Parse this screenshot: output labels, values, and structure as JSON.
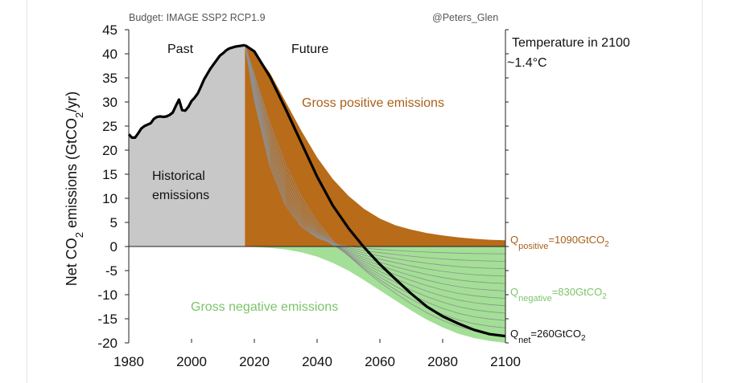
{
  "chart_data": {
    "type": "area",
    "budget_label": "Budget: IMAGE SSP2 RCP1.9",
    "credit": "@Peters_Glen",
    "ylabel": "Net CO₂ emissions (GtCO₂/yr)",
    "ylabel_parts": {
      "a": "Net CO",
      "sub1": "2",
      "b": " emissions (GtCO",
      "sub2": "2",
      "c": "/yr)"
    },
    "xlim": [
      1980,
      2100
    ],
    "ylim": [
      -20,
      45
    ],
    "x_ticks": [
      1980,
      2000,
      2020,
      2040,
      2060,
      2080,
      2100
    ],
    "y_ticks": [
      45,
      40,
      35,
      30,
      25,
      20,
      15,
      10,
      5,
      0,
      -5,
      -10,
      -15,
      -20
    ],
    "transition_year": 2017,
    "annotations": {
      "past": "Past",
      "future": "Future",
      "historical_line1": "Historical",
      "historical_line2": "emissions",
      "gross_positive": "Gross positive emissions",
      "gross_negative": "Gross negative emissions",
      "temp_title": "Temperature in 2100",
      "temp_value": "~1.4°C"
    },
    "budgets": {
      "positive": {
        "q": "Q",
        "sub": "positive",
        "value": "=1090GtCO",
        "unit_sub": "2"
      },
      "negative": {
        "q": "Q",
        "sub": "negative",
        "value": "=830GtCO",
        "unit_sub": "2"
      },
      "net": {
        "q": "Q",
        "sub": "net",
        "value": "=260GtCO",
        "unit_sub": "2"
      }
    },
    "series": [
      {
        "name": "Historical net emissions",
        "x": [
          1980,
          1981,
          1982,
          1983,
          1984,
          1985,
          1986,
          1987,
          1988,
          1989,
          1990,
          1991,
          1992,
          1993,
          1994,
          1995,
          1996,
          1997,
          1998,
          1999,
          2000,
          2001,
          2002,
          2003,
          2004,
          2005,
          2006,
          2007,
          2008,
          2009,
          2010,
          2011,
          2012,
          2013,
          2014,
          2015,
          2016,
          2017
        ],
        "values": [
          23.3,
          22.6,
          22.6,
          23.5,
          24.5,
          25.0,
          25.3,
          25.6,
          26.5,
          26.9,
          27.0,
          26.9,
          27.0,
          27.3,
          27.8,
          29.2,
          30.5,
          28.3,
          28.2,
          29.0,
          30.2,
          30.9,
          31.8,
          33.2,
          34.7,
          35.8,
          36.9,
          37.8,
          38.7,
          39.6,
          40.1,
          40.7,
          41.1,
          41.3,
          41.5,
          41.6,
          41.7,
          41.8
        ]
      },
      {
        "name": "Gross positive emissions",
        "x": [
          2017,
          2020,
          2025,
          2030,
          2035,
          2040,
          2045,
          2050,
          2055,
          2060,
          2065,
          2070,
          2075,
          2080,
          2085,
          2090,
          2095,
          2100
        ],
        "values": [
          41.8,
          40.5,
          36,
          30,
          24,
          18.5,
          14,
          10.5,
          7.8,
          5.8,
          4.4,
          3.5,
          2.8,
          2.3,
          1.9,
          1.6,
          1.4,
          1.3
        ]
      },
      {
        "name": "Gross negative emissions",
        "x": [
          2017,
          2020,
          2025,
          2030,
          2035,
          2040,
          2045,
          2050,
          2055,
          2060,
          2065,
          2070,
          2075,
          2080,
          2085,
          2090,
          2095,
          2100
        ],
        "values": [
          0,
          -0.1,
          -0.3,
          -0.6,
          -1.2,
          -2.1,
          -3.4,
          -5.0,
          -7.0,
          -9.1,
          -11.2,
          -13.3,
          -15.2,
          -16.8,
          -18.1,
          -19.0,
          -19.6,
          -20.0
        ]
      },
      {
        "name": "Net emissions (future)",
        "x": [
          2017,
          2020,
          2025,
          2030,
          2035,
          2040,
          2045,
          2050,
          2055,
          2060,
          2065,
          2070,
          2075,
          2080,
          2085,
          2090,
          2095,
          2100
        ],
        "values": [
          41.8,
          40.5,
          35.2,
          28.5,
          21.5,
          14.5,
          8.5,
          3.8,
          -0.2,
          -3.7,
          -6.8,
          -9.8,
          -12.5,
          -14.5,
          -16.0,
          -17.3,
          -18.2,
          -18.6
        ]
      }
    ],
    "colors": {
      "historical_fill": "#c8c8c8",
      "positive_fill": "#b86b18",
      "negative_fill": "#a3df96",
      "net_line": "#000000",
      "fan_line": "#909090",
      "positive_text": "#a8601a",
      "negative_text": "#7cc46a"
    }
  }
}
